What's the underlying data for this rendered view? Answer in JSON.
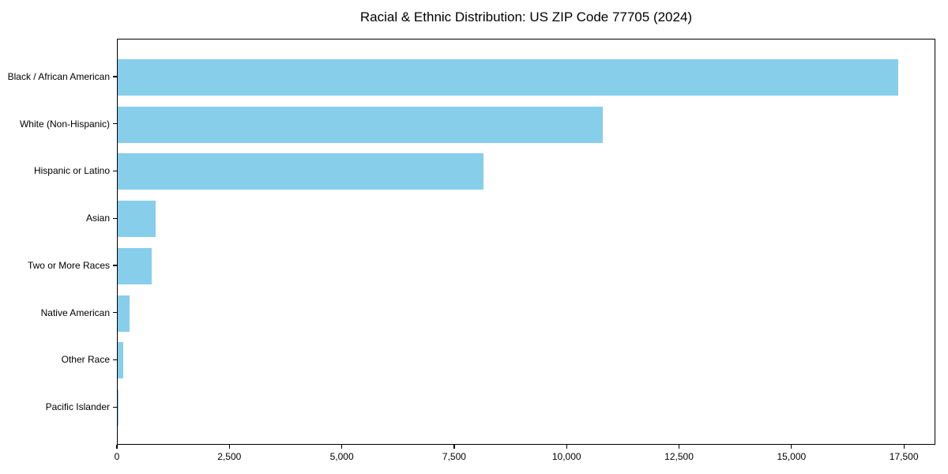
{
  "chart_data": {
    "type": "bar",
    "orientation": "horizontal",
    "title": "Racial & Ethnic Distribution: US ZIP Code 77705 (2024)",
    "categories": [
      "Black / African American",
      "White (Non-Hispanic)",
      "Hispanic or Latino",
      "Asian",
      "Two or More Races",
      "Native American",
      "Other Race",
      "Pacific Islander"
    ],
    "values": [
      17360,
      10780,
      8140,
      840,
      760,
      260,
      120,
      15
    ],
    "xlabel": "",
    "ylabel": "",
    "xlim": [
      0,
      18200
    ],
    "x_ticks": [
      {
        "value": 0,
        "label": "0"
      },
      {
        "value": 2500,
        "label": "2,500"
      },
      {
        "value": 5000,
        "label": "5,000"
      },
      {
        "value": 7500,
        "label": "7,500"
      },
      {
        "value": 10000,
        "label": "10,000"
      },
      {
        "value": 12500,
        "label": "12,500"
      },
      {
        "value": 15000,
        "label": "15,000"
      },
      {
        "value": 17500,
        "label": "17,500"
      }
    ],
    "bar_color": "#87CEEB",
    "axis_color": "#000000",
    "background_color": "#ffffff",
    "grid": false,
    "legend": null
  }
}
